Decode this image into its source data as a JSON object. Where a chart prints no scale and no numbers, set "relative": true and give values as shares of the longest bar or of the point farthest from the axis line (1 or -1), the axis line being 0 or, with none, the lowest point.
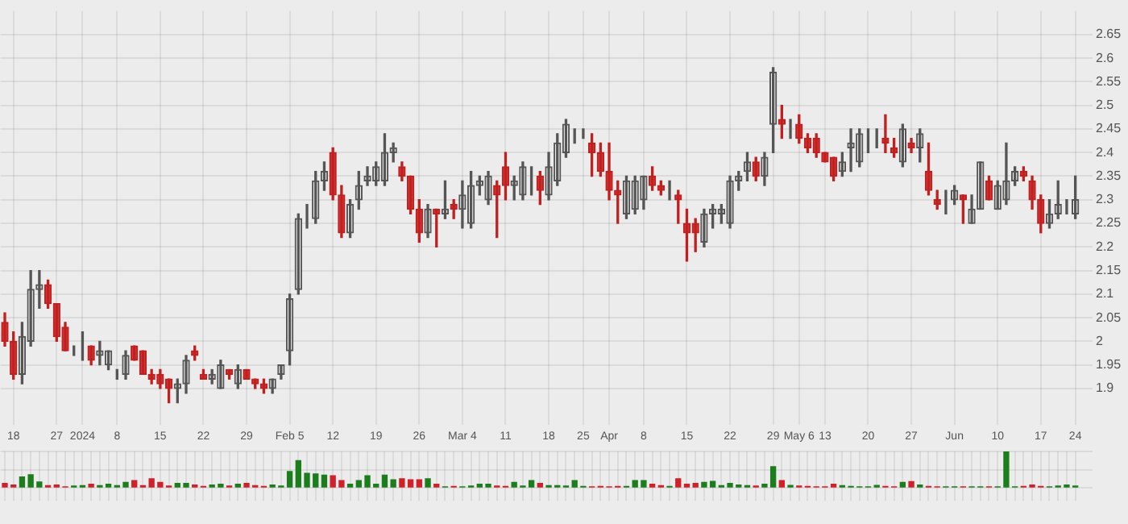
{
  "chart_data": [
    {
      "type": "candlestick",
      "grid": true,
      "ylim": [
        1.85,
        2.7
      ],
      "yticks": [
        1.9,
        1.95,
        2,
        2.05,
        2.1,
        2.15,
        2.2,
        2.25,
        2.3,
        2.35,
        2.4,
        2.45,
        2.5,
        2.55,
        2.6,
        2.65
      ],
      "categories": [
        null,
        "18",
        null,
        null,
        null,
        null,
        "27",
        null,
        null,
        "2024",
        null,
        null,
        null,
        "8",
        null,
        null,
        null,
        null,
        "15",
        null,
        null,
        null,
        null,
        "22",
        null,
        null,
        null,
        null,
        "29",
        null,
        null,
        null,
        null,
        "Feb 5",
        null,
        null,
        null,
        null,
        "12",
        null,
        null,
        null,
        null,
        "19",
        null,
        null,
        null,
        null,
        "26",
        null,
        null,
        null,
        null,
        "Mar 4",
        null,
        null,
        null,
        null,
        "11",
        null,
        null,
        null,
        null,
        "18",
        null,
        null,
        null,
        "25",
        null,
        null,
        "Apr",
        null,
        null,
        null,
        "8",
        null,
        null,
        null,
        null,
        "15",
        null,
        null,
        null,
        null,
        "22",
        null,
        null,
        null,
        null,
        "29",
        null,
        null,
        "May 6",
        null,
        null,
        "13",
        null,
        null,
        null,
        null,
        "20",
        null,
        null,
        null,
        null,
        "27",
        null,
        null,
        null,
        null,
        "Jun",
        null,
        null,
        null,
        null,
        "10",
        null,
        null,
        null,
        null,
        "17",
        null,
        null,
        null,
        "24"
      ],
      "ohlc": [
        [
          2.04,
          2.06,
          1.99,
          2.0
        ],
        [
          2.0,
          2.02,
          1.92,
          1.93
        ],
        [
          1.93,
          2.04,
          1.91,
          2.01
        ],
        [
          2.0,
          2.15,
          1.99,
          2.11
        ],
        [
          2.11,
          2.15,
          2.07,
          2.12
        ],
        [
          2.12,
          2.13,
          2.07,
          2.08
        ],
        [
          2.08,
          2.08,
          2.0,
          2.01
        ],
        [
          2.03,
          2.04,
          1.98,
          1.98
        ],
        [
          1.98,
          1.99,
          1.97,
          1.98
        ],
        [
          1.99,
          2.02,
          1.96,
          1.99
        ],
        [
          1.99,
          1.99,
          1.95,
          1.96
        ],
        [
          1.97,
          2.0,
          1.95,
          1.98
        ],
        [
          1.95,
          1.98,
          1.94,
          1.98
        ],
        [
          1.93,
          1.94,
          1.92,
          1.93
        ],
        [
          1.93,
          1.98,
          1.92,
          1.97
        ],
        [
          1.99,
          1.99,
          1.96,
          1.96
        ],
        [
          1.98,
          1.98,
          1.93,
          1.93
        ],
        [
          1.93,
          1.94,
          1.91,
          1.92
        ],
        [
          1.93,
          1.94,
          1.9,
          1.91
        ],
        [
          1.92,
          1.92,
          1.87,
          1.9
        ],
        [
          1.9,
          1.92,
          1.87,
          1.91
        ],
        [
          1.91,
          1.97,
          1.89,
          1.96
        ],
        [
          1.98,
          1.99,
          1.96,
          1.97
        ],
        [
          1.93,
          1.94,
          1.92,
          1.92
        ],
        [
          1.92,
          1.94,
          1.91,
          1.93
        ],
        [
          1.9,
          1.96,
          1.9,
          1.95
        ],
        [
          1.94,
          1.94,
          1.92,
          1.93
        ],
        [
          1.91,
          1.95,
          1.9,
          1.94
        ],
        [
          1.94,
          1.94,
          1.92,
          1.92
        ],
        [
          1.92,
          1.92,
          1.9,
          1.91
        ],
        [
          1.91,
          1.92,
          1.89,
          1.9
        ],
        [
          1.9,
          1.92,
          1.89,
          1.92
        ],
        [
          1.93,
          1.95,
          1.92,
          1.95
        ],
        [
          1.98,
          2.1,
          1.95,
          2.09
        ],
        [
          2.11,
          2.27,
          2.1,
          2.26
        ],
        [
          2.26,
          2.29,
          2.24,
          2.26
        ],
        [
          2.26,
          2.36,
          2.25,
          2.34
        ],
        [
          2.34,
          2.38,
          2.32,
          2.36
        ],
        [
          2.4,
          2.41,
          2.3,
          2.31
        ],
        [
          2.31,
          2.33,
          2.22,
          2.23
        ],
        [
          2.23,
          2.3,
          2.22,
          2.29
        ],
        [
          2.3,
          2.36,
          2.28,
          2.33
        ],
        [
          2.34,
          2.37,
          2.33,
          2.35
        ],
        [
          2.34,
          2.38,
          2.33,
          2.37
        ],
        [
          2.34,
          2.44,
          2.33,
          2.4
        ],
        [
          2.4,
          2.42,
          2.38,
          2.41
        ],
        [
          2.37,
          2.38,
          2.34,
          2.35
        ],
        [
          2.35,
          2.35,
          2.27,
          2.28
        ],
        [
          2.28,
          2.3,
          2.21,
          2.23
        ],
        [
          2.23,
          2.29,
          2.22,
          2.28
        ],
        [
          2.28,
          2.28,
          2.2,
          2.27
        ],
        [
          2.27,
          2.34,
          2.26,
          2.28
        ],
        [
          2.29,
          2.3,
          2.26,
          2.28
        ],
        [
          2.28,
          2.34,
          2.24,
          2.31
        ],
        [
          2.25,
          2.36,
          2.24,
          2.33
        ],
        [
          2.33,
          2.35,
          2.31,
          2.34
        ],
        [
          2.3,
          2.36,
          2.29,
          2.35
        ],
        [
          2.33,
          2.34,
          2.22,
          2.31
        ],
        [
          2.37,
          2.4,
          2.3,
          2.33
        ],
        [
          2.33,
          2.35,
          2.3,
          2.34
        ],
        [
          2.31,
          2.38,
          2.3,
          2.37
        ],
        [
          2.36,
          2.37,
          2.31,
          2.36
        ],
        [
          2.35,
          2.36,
          2.29,
          2.32
        ],
        [
          2.31,
          2.4,
          2.3,
          2.37
        ],
        [
          2.34,
          2.44,
          2.33,
          2.42
        ],
        [
          2.4,
          2.47,
          2.39,
          2.46
        ],
        [
          2.43,
          2.45,
          2.42,
          2.43
        ],
        [
          2.44,
          2.45,
          2.43,
          2.44
        ],
        [
          2.42,
          2.44,
          2.35,
          2.4
        ],
        [
          2.4,
          2.42,
          2.35,
          2.36
        ],
        [
          2.36,
          2.42,
          2.3,
          2.32
        ],
        [
          2.32,
          2.34,
          2.25,
          2.31
        ],
        [
          2.27,
          2.35,
          2.26,
          2.34
        ],
        [
          2.28,
          2.35,
          2.27,
          2.34
        ],
        [
          2.3,
          2.35,
          2.28,
          2.35
        ],
        [
          2.35,
          2.37,
          2.32,
          2.33
        ],
        [
          2.33,
          2.34,
          2.31,
          2.32
        ],
        [
          2.32,
          2.34,
          2.3,
          2.32
        ],
        [
          2.31,
          2.32,
          2.25,
          2.3
        ],
        [
          2.25,
          2.28,
          2.17,
          2.23
        ],
        [
          2.25,
          2.26,
          2.19,
          2.23
        ],
        [
          2.21,
          2.28,
          2.2,
          2.27
        ],
        [
          2.27,
          2.29,
          2.24,
          2.28
        ],
        [
          2.27,
          2.29,
          2.25,
          2.28
        ],
        [
          2.25,
          2.35,
          2.24,
          2.34
        ],
        [
          2.34,
          2.36,
          2.32,
          2.35
        ],
        [
          2.36,
          2.4,
          2.34,
          2.38
        ],
        [
          2.38,
          2.39,
          2.34,
          2.35
        ],
        [
          2.35,
          2.4,
          2.33,
          2.39
        ],
        [
          2.46,
          2.58,
          2.4,
          2.57
        ],
        [
          2.47,
          2.5,
          2.43,
          2.46
        ],
        [
          2.46,
          2.47,
          2.43,
          2.46
        ],
        [
          2.46,
          2.48,
          2.42,
          2.43
        ],
        [
          2.43,
          2.44,
          2.4,
          2.41
        ],
        [
          2.43,
          2.44,
          2.39,
          2.4
        ],
        [
          2.4,
          2.4,
          2.38,
          2.38
        ],
        [
          2.39,
          2.39,
          2.34,
          2.35
        ],
        [
          2.36,
          2.4,
          2.35,
          2.38
        ],
        [
          2.41,
          2.45,
          2.36,
          2.42
        ],
        [
          2.38,
          2.45,
          2.37,
          2.44
        ],
        [
          2.44,
          2.45,
          2.4,
          2.44
        ],
        [
          2.44,
          2.45,
          2.41,
          2.44
        ],
        [
          2.43,
          2.48,
          2.4,
          2.42
        ],
        [
          2.41,
          2.43,
          2.39,
          2.4
        ],
        [
          2.38,
          2.46,
          2.37,
          2.45
        ],
        [
          2.42,
          2.43,
          2.4,
          2.41
        ],
        [
          2.41,
          2.45,
          2.38,
          2.44
        ],
        [
          2.36,
          2.42,
          2.31,
          2.32
        ],
        [
          2.3,
          2.32,
          2.28,
          2.29
        ],
        [
          2.3,
          2.32,
          2.27,
          2.3
        ],
        [
          2.3,
          2.33,
          2.29,
          2.32
        ],
        [
          2.31,
          2.31,
          2.25,
          2.3
        ],
        [
          2.25,
          2.31,
          2.25,
          2.28
        ],
        [
          2.28,
          2.38,
          2.28,
          2.38
        ],
        [
          2.34,
          2.35,
          2.3,
          2.3
        ],
        [
          2.28,
          2.34,
          2.28,
          2.33
        ],
        [
          2.3,
          2.42,
          2.29,
          2.34
        ],
        [
          2.34,
          2.37,
          2.33,
          2.36
        ],
        [
          2.36,
          2.37,
          2.34,
          2.35
        ],
        [
          2.34,
          2.35,
          2.28,
          2.3
        ],
        [
          2.3,
          2.31,
          2.23,
          2.25
        ],
        [
          2.25,
          2.3,
          2.24,
          2.27
        ],
        [
          2.27,
          2.34,
          2.26,
          2.29
        ],
        [
          2.29,
          2.3,
          2.27,
          2.29
        ],
        [
          2.27,
          2.35,
          2.26,
          2.3
        ]
      ]
    },
    {
      "type": "bar",
      "relative": true,
      "grid": true,
      "categories": [
        null,
        null,
        null,
        null,
        null,
        null,
        null,
        null,
        null,
        null,
        null,
        null,
        null,
        null,
        null,
        null,
        null,
        null,
        null,
        null,
        null,
        null,
        null,
        null,
        null,
        null,
        null,
        null,
        null,
        null,
        null,
        null,
        null,
        null,
        null,
        null,
        null,
        null,
        null,
        null,
        null,
        null,
        null,
        null,
        null,
        null,
        null,
        null,
        null,
        null,
        null,
        null,
        null,
        null,
        null,
        null,
        null,
        null,
        null,
        null,
        null,
        null,
        null,
        null,
        null,
        null,
        null,
        null,
        null,
        null,
        null,
        null,
        null,
        null,
        null,
        null,
        null,
        null,
        null,
        null,
        null,
        null,
        null,
        null,
        null,
        null,
        null,
        null,
        null,
        null,
        null,
        null,
        null,
        null,
        null,
        null,
        null,
        null,
        null,
        null,
        null,
        null,
        null,
        null,
        null,
        null,
        null,
        null,
        null,
        null,
        null,
        null,
        null,
        null,
        null,
        null,
        null,
        null,
        null,
        null,
        null,
        null,
        null,
        null,
        null
      ],
      "values": [
        0.12,
        0.08,
        0.3,
        0.36,
        0.16,
        0.06,
        0.08,
        0.03,
        0.05,
        0.06,
        0.1,
        0.06,
        0.1,
        0.06,
        0.15,
        0.2,
        0.06,
        0.25,
        0.15,
        0.05,
        0.12,
        0.12,
        0.08,
        0.04,
        0.08,
        0.1,
        0.05,
        0.1,
        0.12,
        0.06,
        0.04,
        0.08,
        0.05,
        0.45,
        0.75,
        0.4,
        0.38,
        0.35,
        0.33,
        0.2,
        0.1,
        0.2,
        0.33,
        0.1,
        0.35,
        0.22,
        0.25,
        0.22,
        0.22,
        0.25,
        0.1,
        0.03,
        0.04,
        0.03,
        0.05,
        0.1,
        0.1,
        0.05,
        0.04,
        0.15,
        0.05,
        0.2,
        0.12,
        0.06,
        0.06,
        0.05,
        0.2,
        0.04,
        0.03,
        0.04,
        0.03,
        0.04,
        0.04,
        0.2,
        0.2,
        0.1,
        0.06,
        0.04,
        0.25,
        0.1,
        0.12,
        0.15,
        0.18,
        0.06,
        0.12,
        0.08,
        0.06,
        0.05,
        0.1,
        0.58,
        0.2,
        0.07,
        0.05,
        0.04,
        0.03,
        0.03,
        0.1,
        0.06,
        0.04,
        0.03,
        0.03,
        0.07,
        0.04,
        0.03,
        0.15,
        0.17,
        0.08,
        0.04,
        0.03,
        0.03,
        0.03,
        0.03,
        0.03,
        0.03,
        0.03,
        0.03,
        1.0,
        0.03,
        0.04,
        0.08,
        0.04,
        0.03,
        0.05,
        0.08,
        0.05
      ],
      "colors": [
        "#d0202a",
        "#d0202a",
        "#1b7d1b",
        "#1b7d1b",
        "#1b7d1b",
        "#d0202a",
        "#d0202a",
        "#d0202a",
        "#1b7d1b",
        "#1b7d1b",
        "#d0202a",
        "#1b7d1b",
        "#1b7d1b",
        "#1b7d1b",
        "#1b7d1b",
        "#d0202a",
        "#d0202a",
        "#d0202a",
        "#d0202a",
        "#d0202a",
        "#1b7d1b",
        "#1b7d1b",
        "#d0202a",
        "#d0202a",
        "#1b7d1b",
        "#1b7d1b",
        "#d0202a",
        "#1b7d1b",
        "#d0202a",
        "#d0202a",
        "#d0202a",
        "#1b7d1b",
        "#1b7d1b",
        "#1b7d1b",
        "#1b7d1b",
        "#1b7d1b",
        "#1b7d1b",
        "#1b7d1b",
        "#d0202a",
        "#d0202a",
        "#1b7d1b",
        "#1b7d1b",
        "#1b7d1b",
        "#1b7d1b",
        "#1b7d1b",
        "#1b7d1b",
        "#d0202a",
        "#d0202a",
        "#d0202a",
        "#1b7d1b",
        "#d0202a",
        "#1b7d1b",
        "#d0202a",
        "#1b7d1b",
        "#1b7d1b",
        "#1b7d1b",
        "#1b7d1b",
        "#d0202a",
        "#d0202a",
        "#1b7d1b",
        "#1b7d1b",
        "#1b7d1b",
        "#d0202a",
        "#1b7d1b",
        "#1b7d1b",
        "#1b7d1b",
        "#1b7d1b",
        "#1b7d1b",
        "#d0202a",
        "#d0202a",
        "#d0202a",
        "#d0202a",
        "#1b7d1b",
        "#1b7d1b",
        "#1b7d1b",
        "#d0202a",
        "#d0202a",
        "#1b7d1b",
        "#d0202a",
        "#d0202a",
        "#d0202a",
        "#1b7d1b",
        "#1b7d1b",
        "#1b7d1b",
        "#1b7d1b",
        "#1b7d1b",
        "#1b7d1b",
        "#d0202a",
        "#1b7d1b",
        "#1b7d1b",
        "#d0202a",
        "#1b7d1b",
        "#d0202a",
        "#d0202a",
        "#d0202a",
        "#d0202a",
        "#d0202a",
        "#1b7d1b",
        "#1b7d1b",
        "#1b7d1b",
        "#1b7d1b",
        "#1b7d1b",
        "#d0202a",
        "#d0202a",
        "#1b7d1b",
        "#d0202a",
        "#1b7d1b",
        "#d0202a",
        "#d0202a",
        "#1b7d1b",
        "#1b7d1b",
        "#d0202a",
        "#1b7d1b",
        "#1b7d1b",
        "#d0202a",
        "#1b7d1b",
        "#1b7d1b",
        "#1b7d1b",
        "#d0202a",
        "#d0202a",
        "#d0202a",
        "#1b7d1b",
        "#1b7d1b",
        "#1b7d1b",
        "#1b7d1b"
      ]
    }
  ]
}
